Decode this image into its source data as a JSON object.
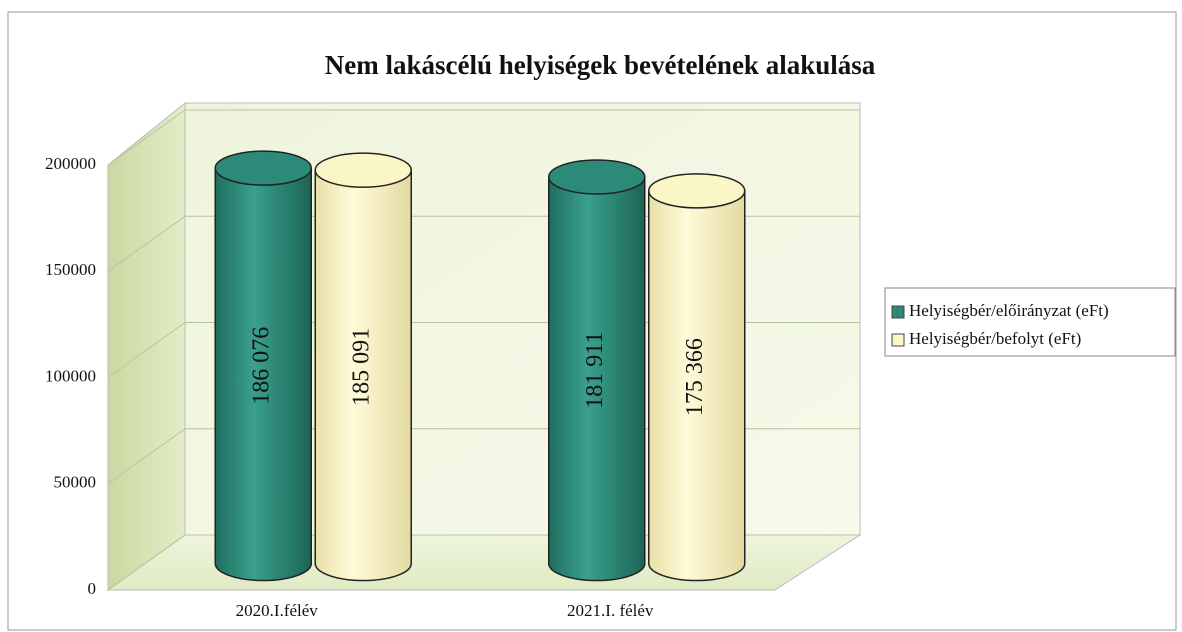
{
  "chart_data": {
    "type": "bar3d-cylinder",
    "title": "Nem lakáscélú helyiségek bevételének alakulása",
    "categories": [
      "2020.I.félév",
      "2021.I. félév"
    ],
    "series": [
      {
        "name": "Helyiségbér/előirányzat (eFt)",
        "color": "#2b8a78",
        "values": [
          186076,
          181911
        ],
        "value_labels": [
          "186 076",
          "181 911"
        ]
      },
      {
        "name": "Helyiségbér/befolyt (eFt)",
        "color": "#fbf6c6",
        "values": [
          185091,
          175366
        ],
        "value_labels": [
          "185 091",
          "175 366"
        ]
      }
    ],
    "ylim": [
      0,
      200000
    ],
    "yticks": [
      0,
      50000,
      100000,
      150000,
      200000
    ],
    "grid": true,
    "legend": "right"
  }
}
